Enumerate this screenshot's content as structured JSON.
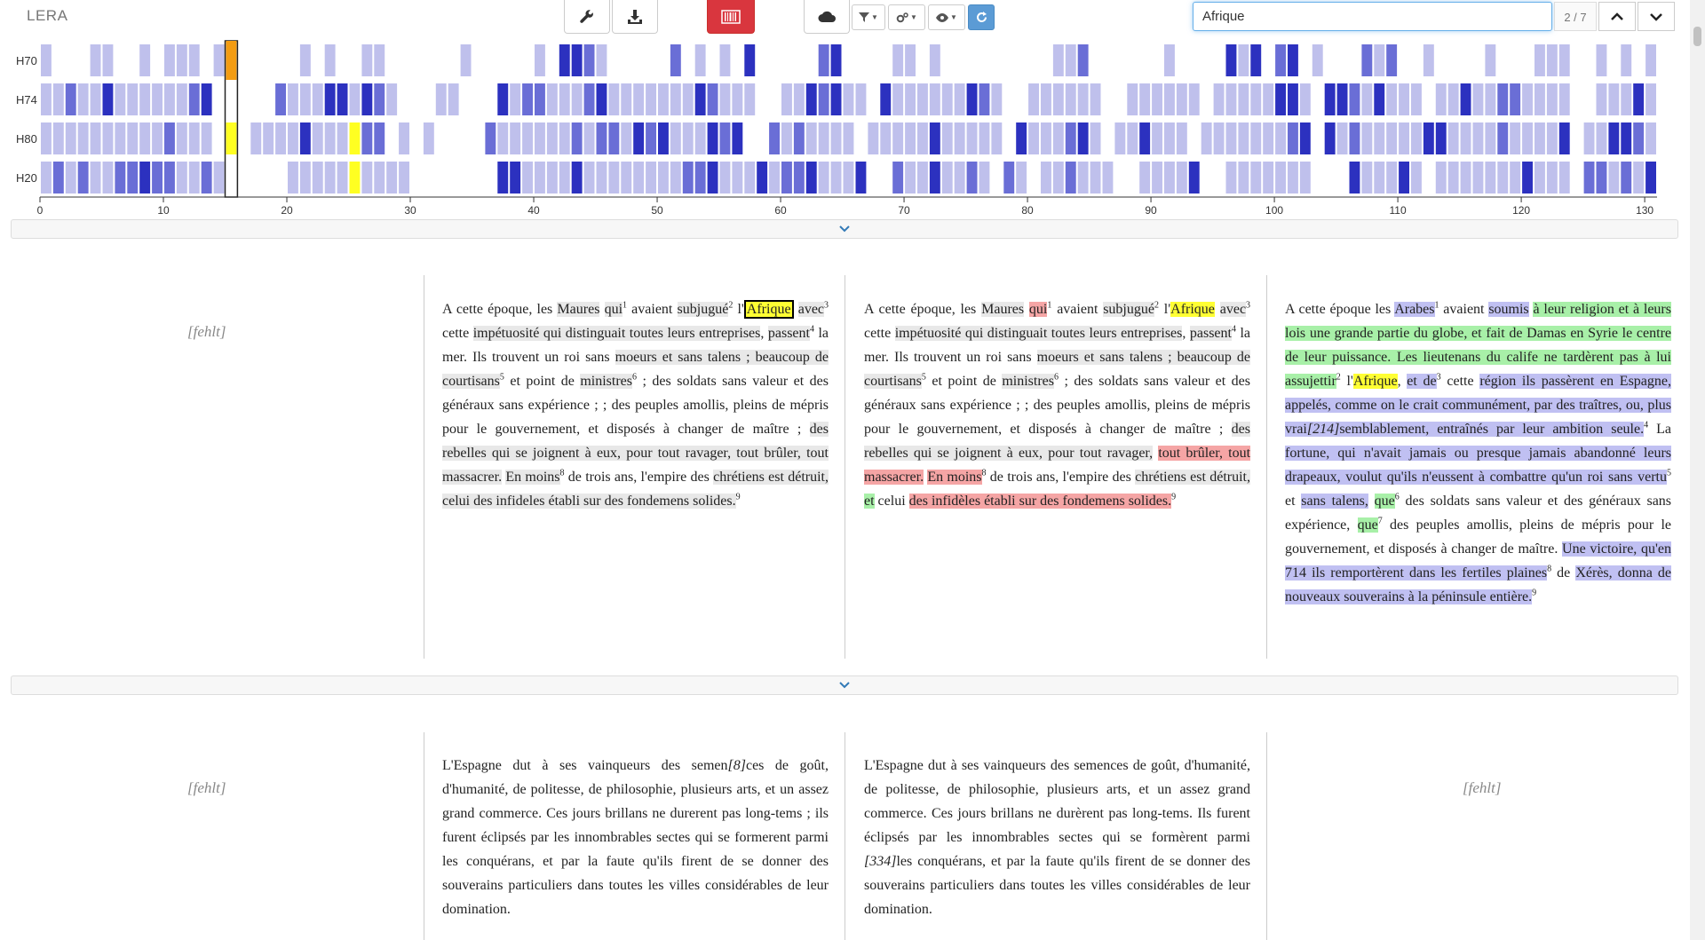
{
  "app": {
    "title": "LERA"
  },
  "toolbar": {
    "search_value": "Afrique",
    "search_count": "2 / 7",
    "colors": {
      "red_button": "#d9363e",
      "blue_button": "#5b9bd5"
    },
    "icons": [
      "wrench-icon",
      "download-icon",
      "barcode-icon",
      "cloud-icon",
      "filter-icon",
      "settings-icon",
      "eye-icon",
      "refresh-icon",
      "chevron-up-icon",
      "chevron-down-icon"
    ]
  },
  "heatmap": {
    "rows": [
      "H70",
      "H74",
      "H80",
      "H20"
    ],
    "axis_ticks": [
      "0",
      "10",
      "20",
      "30",
      "40",
      "50",
      "60",
      "70",
      "80",
      "90",
      "100",
      "110",
      "120",
      "130"
    ],
    "max": 131,
    "selected": 16,
    "colors": {
      "light": "#bfc0ec",
      "mid": "#6a6ed6",
      "dark": "#2c31bf",
      "yellow": "#ffff22",
      "orange": "#f39c12"
    }
  },
  "sections": [
    {
      "columns": [
        {
          "missing": "[fehlt]"
        },
        {
          "text": "A cette époque, les Maures qui1 avaient subjugué2 l'Afrique avec3 cette impétuosité qui distinguait toutes leurs entreprises, passent4 la mer. Ils trouvent un roi sans moeurs et sans talens ; beaucoup de courtisans5 et point de ministres6 ; des soldats sans valeur et des généraux sans expérience ; ; des peuples amollis, pleins de mépris pour le gouvernement, et disposés à changer de maître ; des rebelles qui se joignent à eux, pour tout ravager, tout brûler, tout massacrer. En moins8 de trois ans, l'empire des chrétiens est détruit, celui des infideles établi sur des fondemens solides.9"
        },
        {
          "text": "A cette époque, les Maures qui1 avaient subjugué2 l'Afrique avec3 cette impétuosité qui distinguait toutes leurs entreprises, passent4 la mer. Ils trouvent un roi sans moeurs et sans talens ; beaucoup de courtisans5 et point de ministres6 ; des soldats sans valeur et des généraux sans expérience ; ; des peuples amollis, pleins de mépris pour le gouvernement, et disposés à changer de maître ; des rebelles qui se joignent à eux, pour tout ravager, tout brûler, tout massacrer. En moins8 de trois ans, l'empire des chrétiens est détruit, et celui des infidèles établi sur des fondemens solides.9"
        },
        {
          "text": "A cette époque les Arabes1 avaient soumis à leur religion et à leurs lois une grande partie du globe, et fait de Damas en Syrie le centre de leur puissance. Les lieutenans du calife ne tardèrent pas à lui assujettir2 l'Afrique, et de3 cette région ils passèrent en Espagne, appelés, comme on le crait communément, par des traîtres, ou, plus vrai[214]semblablement, entraînés par leur ambition seule.4 La fortune, qui n'avait jamais ou presque jamais abandonné leurs drapeaux, voulut qu'ils n'eussent à combattre qu'un roi sans vertu5 et sans talens, que6 des soldats sans valeur et des généraux sans expérience, que7 des peuples amollis, pleins de mépris pour le gouvernement, et disposés à changer de maître. Une victoire, qu'en 714 ils remportèrent dans les fertiles plaines8 de Xérès, donna de nouveaux souverains à la péninsule entière.9"
        }
      ]
    },
    {
      "columns": [
        {
          "missing": "[fehlt]"
        },
        {
          "text": "L'Espagne dut à ses vainqueurs des semen[8]ces de goût, d'humanité, de politesse, de philosophie, plusieurs arts, et un assez grand commerce. Ces jours brillans ne durerent pas long-tems ; ils furent éclipsés par les innombrables sectes qui se formerent parmi les conquérans, et par la faute qu'ils firent de se donner des souverains particuliers dans toutes les villes considérables de leur domination."
        },
        {
          "text": "L'Espagne dut à ses vainqueurs des semences de goût, d'humanité, de politesse, de philosophie, plusieurs arts, et un assez grand commerce. Ces jours brillans ne durèrent pas long-tems. Ils furent éclipsés par les innombrables sectes qui se formèrent parmi [334]les conquérans, et par la faute qu'ils firent de se donner des souverains particuliers dans toutes les villes considérables de leur domination."
        },
        {
          "missing": "[fehlt]"
        }
      ]
    }
  ]
}
